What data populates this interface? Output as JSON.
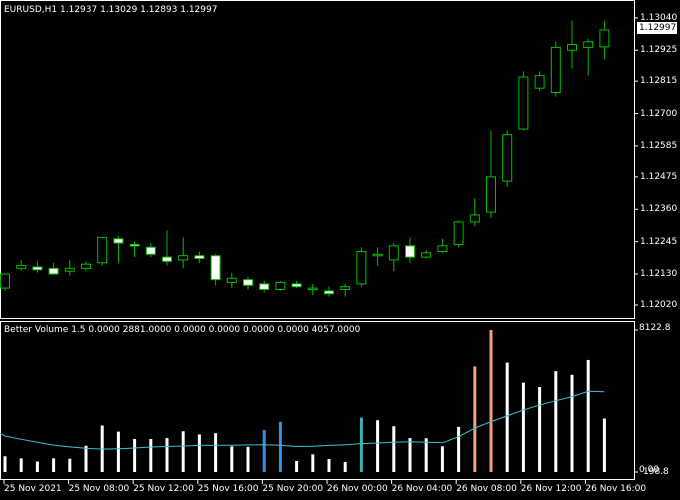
{
  "main": {
    "symbol": "EURUSD,H1",
    "ohlc": "1.12937 1.13029 1.12893 1.12997",
    "current_price": "1.12997",
    "price_ticks": [
      "1.13040",
      "1.12925",
      "1.12815",
      "1.12700",
      "1.12585",
      "1.12475",
      "1.12360",
      "1.12245",
      "1.12130",
      "1.12020"
    ]
  },
  "indicator": {
    "title": "Better Volume 1.5 0.0000 2881.0000 0.0000 0.0000 0.0000 0.0000 4057.0000",
    "max_label": "8122.8",
    "min_label": "0.00",
    "zero_overlap_label": "198.8"
  },
  "time_axis": {
    "labels": [
      "25 Nov 2021",
      "25 Nov 08:00",
      "25 Nov 12:00",
      "25 Nov 16:00",
      "25 Nov 20:00",
      "26 Nov 00:00",
      "26 Nov 04:00",
      "26 Nov 08:00",
      "26 Nov 12:00",
      "26 Nov 16:00"
    ]
  },
  "colors": {
    "background": "#000000",
    "bull_candle": "#00c000",
    "bear_candle_body": "#ffffff",
    "volume_normal": "#ffffff",
    "volume_low": "#3c8fdc",
    "volume_climax": "#f0a080",
    "volume_churn": "#40b0b0",
    "volume_ma": "#40c0d0"
  },
  "chart_data": {
    "type": "candlestick",
    "symbol": "EURUSD",
    "timeframe": "H1",
    "candles": [
      {
        "o": 1.1208,
        "h": 1.12125,
        "l": 1.1207,
        "c": 1.1213
      },
      {
        "o": 1.1215,
        "h": 1.1218,
        "l": 1.1214,
        "c": 1.1216
      },
      {
        "o": 1.12155,
        "h": 1.12175,
        "l": 1.12135,
        "c": 1.12145
      },
      {
        "o": 1.1215,
        "h": 1.1217,
        "l": 1.1213,
        "c": 1.1213
      },
      {
        "o": 1.1214,
        "h": 1.1218,
        "l": 1.12125,
        "c": 1.1215
      },
      {
        "o": 1.1215,
        "h": 1.12175,
        "l": 1.1214,
        "c": 1.12165
      },
      {
        "o": 1.1217,
        "h": 1.12255,
        "l": 1.1216,
        "c": 1.1226
      },
      {
        "o": 1.12255,
        "h": 1.12265,
        "l": 1.1217,
        "c": 1.1224
      },
      {
        "o": 1.12235,
        "h": 1.12245,
        "l": 1.1219,
        "c": 1.1223
      },
      {
        "o": 1.12225,
        "h": 1.1224,
        "l": 1.1219,
        "c": 1.122
      },
      {
        "o": 1.1219,
        "h": 1.12285,
        "l": 1.1216,
        "c": 1.12175
      },
      {
        "o": 1.1218,
        "h": 1.1226,
        "l": 1.1215,
        "c": 1.12195
      },
      {
        "o": 1.12195,
        "h": 1.1221,
        "l": 1.1217,
        "c": 1.12185
      },
      {
        "o": 1.12195,
        "h": 1.122,
        "l": 1.1209,
        "c": 1.1211
      },
      {
        "o": 1.121,
        "h": 1.12135,
        "l": 1.1208,
        "c": 1.12115
      },
      {
        "o": 1.1211,
        "h": 1.1212,
        "l": 1.12075,
        "c": 1.1209
      },
      {
        "o": 1.12095,
        "h": 1.12105,
        "l": 1.12065,
        "c": 1.12075
      },
      {
        "o": 1.12075,
        "h": 1.12105,
        "l": 1.1207,
        "c": 1.121
      },
      {
        "o": 1.12095,
        "h": 1.12105,
        "l": 1.1208,
        "c": 1.12085
      },
      {
        "o": 1.12075,
        "h": 1.12095,
        "l": 1.12055,
        "c": 1.1208
      },
      {
        "o": 1.1207,
        "h": 1.12085,
        "l": 1.1205,
        "c": 1.1206
      },
      {
        "o": 1.12075,
        "h": 1.12095,
        "l": 1.1205,
        "c": 1.12085
      },
      {
        "o": 1.12095,
        "h": 1.12225,
        "l": 1.12085,
        "c": 1.1221
      },
      {
        "o": 1.12195,
        "h": 1.12225,
        "l": 1.1216,
        "c": 1.122
      },
      {
        "o": 1.1218,
        "h": 1.1224,
        "l": 1.1214,
        "c": 1.1223
      },
      {
        "o": 1.1223,
        "h": 1.1226,
        "l": 1.1217,
        "c": 1.1219
      },
      {
        "o": 1.1219,
        "h": 1.12215,
        "l": 1.12185,
        "c": 1.12205
      },
      {
        "o": 1.1221,
        "h": 1.12255,
        "l": 1.12205,
        "c": 1.1223
      },
      {
        "o": 1.12235,
        "h": 1.1232,
        "l": 1.12225,
        "c": 1.12315
      },
      {
        "o": 1.12315,
        "h": 1.124,
        "l": 1.123,
        "c": 1.1234
      },
      {
        "o": 1.1235,
        "h": 1.1264,
        "l": 1.1233,
        "c": 1.12475
      },
      {
        "o": 1.1246,
        "h": 1.1264,
        "l": 1.1244,
        "c": 1.12625
      },
      {
        "o": 1.12645,
        "h": 1.1285,
        "l": 1.1264,
        "c": 1.1283
      },
      {
        "o": 1.1279,
        "h": 1.1285,
        "l": 1.1278,
        "c": 1.12835
      },
      {
        "o": 1.12775,
        "h": 1.12955,
        "l": 1.1276,
        "c": 1.12935
      },
      {
        "o": 1.12925,
        "h": 1.1303,
        "l": 1.1286,
        "c": 1.12945
      },
      {
        "o": 1.12935,
        "h": 1.12965,
        "l": 1.12835,
        "c": 1.12955
      },
      {
        "o": 1.12937,
        "h": 1.13029,
        "l": 1.12893,
        "c": 1.12997
      }
    ],
    "volume": [
      {
        "v": 900,
        "t": "n"
      },
      {
        "v": 780,
        "t": "n"
      },
      {
        "v": 600,
        "t": "n"
      },
      {
        "v": 780,
        "t": "n"
      },
      {
        "v": 760,
        "t": "n"
      },
      {
        "v": 1500,
        "t": "n"
      },
      {
        "v": 2660,
        "t": "n"
      },
      {
        "v": 2310,
        "t": "n"
      },
      {
        "v": 1890,
        "t": "n"
      },
      {
        "v": 1890,
        "t": "n"
      },
      {
        "v": 1940,
        "t": "n"
      },
      {
        "v": 2330,
        "t": "n"
      },
      {
        "v": 2150,
        "t": "n"
      },
      {
        "v": 2220,
        "t": "n"
      },
      {
        "v": 1470,
        "t": "n"
      },
      {
        "v": 1440,
        "t": "n"
      },
      {
        "v": 2400,
        "t": "l"
      },
      {
        "v": 2870,
        "t": "l"
      },
      {
        "v": 630,
        "t": "n"
      },
      {
        "v": 1010,
        "t": "n"
      },
      {
        "v": 740,
        "t": "n"
      },
      {
        "v": 570,
        "t": "n"
      },
      {
        "v": 3110,
        "t": "c"
      },
      {
        "v": 2960,
        "t": "n"
      },
      {
        "v": 2620,
        "t": "n"
      },
      {
        "v": 1940,
        "t": "n"
      },
      {
        "v": 1930,
        "t": "n"
      },
      {
        "v": 1470,
        "t": "n"
      },
      {
        "v": 2580,
        "t": "n"
      },
      {
        "v": 6040,
        "t": "x"
      },
      {
        "v": 8122.8,
        "t": "x"
      },
      {
        "v": 6260,
        "t": "n"
      },
      {
        "v": 5110,
        "t": "n"
      },
      {
        "v": 4860,
        "t": "n"
      },
      {
        "v": 5770,
        "t": "n"
      },
      {
        "v": 5560,
        "t": "n"
      },
      {
        "v": 6410,
        "t": "n"
      },
      {
        "v": 3060,
        "t": "n"
      }
    ],
    "volume_ma": [
      2060,
      1870,
      1700,
      1540,
      1440,
      1360,
      1310,
      1330,
      1370,
      1430,
      1460,
      1490,
      1520,
      1530,
      1530,
      1550,
      1560,
      1530,
      1460,
      1470,
      1520,
      1560,
      1620,
      1660,
      1700,
      1730,
      1700,
      1670,
      2020,
      2510,
      2880,
      3210,
      3550,
      3830,
      4080,
      4310,
      4620,
      4590
    ],
    "y_range": [
      1.11995,
      1.13075
    ],
    "volume_range": [
      0,
      8122.8
    ]
  }
}
